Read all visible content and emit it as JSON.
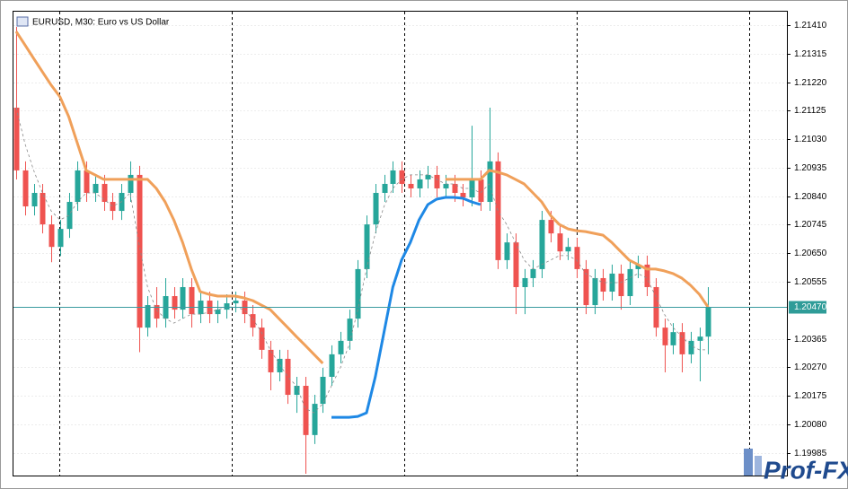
{
  "chart_data": {
    "type": "candlestick",
    "title": "EURUSD, M30:  Euro vs US Dollar",
    "bull_color": "#26a69a",
    "bear_color": "#ef5350",
    "open": [
      1.21135,
      1.20926,
      1.20806,
      1.20851,
      1.20746,
      1.20671,
      1.20731,
      1.20821,
      1.20926,
      1.20851,
      1.20881,
      1.20821,
      1.20791,
      1.20851,
      1.20911,
      1.20402,
      1.20477,
      1.20432,
      1.20507,
      1.20462,
      1.20537,
      1.20447,
      1.20492,
      1.20447,
      1.20462,
      1.20483,
      1.20492,
      1.20447,
      1.20402,
      1.20328,
      1.20253,
      1.20298,
      1.20178,
      1.20208,
      1.20044,
      1.20148,
      1.20238,
      1.20313,
      1.20358,
      1.20432,
      1.20597,
      1.20746,
      1.20851,
      1.20881,
      1.20926,
      1.20881,
      1.20866,
      1.20896,
      1.20911,
      1.20866,
      1.20881,
      1.20851,
      1.20836,
      1.20896,
      1.20821,
      1.20956,
      1.20627,
      1.20686,
      1.20537,
      1.20567,
      1.20597,
      1.20761,
      1.20716,
      1.20656,
      1.20671,
      1.20597,
      1.20477,
      1.20567,
      1.20522,
      1.20582,
      1.20507,
      1.20597,
      1.20612,
      1.20537,
      1.20402,
      1.20343,
      1.20387,
      1.20313,
      1.20358,
      1.20372
    ],
    "high": [
      1.21404,
      1.20956,
      1.20881,
      1.20881,
      1.20776,
      1.20761,
      1.20851,
      1.20956,
      1.20956,
      1.20911,
      1.20911,
      1.20851,
      1.20881,
      1.20956,
      1.20941,
      1.20507,
      1.20537,
      1.20567,
      1.20537,
      1.20567,
      1.20567,
      1.20522,
      1.20522,
      1.20492,
      1.20513,
      1.20522,
      1.20522,
      1.20477,
      1.20432,
      1.20358,
      1.20328,
      1.20328,
      1.20238,
      1.20238,
      1.20178,
      1.20268,
      1.20343,
      1.20388,
      1.20462,
      1.20627,
      1.20776,
      1.20881,
      1.20911,
      1.20956,
      1.20956,
      1.20911,
      1.20926,
      1.20941,
      1.20941,
      1.20911,
      1.20911,
      1.20881,
      1.21075,
      1.20926,
      1.21135,
      1.20986,
      1.20716,
      1.20716,
      1.20597,
      1.20627,
      1.20791,
      1.20791,
      1.20746,
      1.20701,
      1.20701,
      1.20627,
      1.20597,
      1.20597,
      1.20612,
      1.20612,
      1.20627,
      1.20642,
      1.20642,
      1.20567,
      1.20432,
      1.20417,
      1.20417,
      1.20388,
      1.20402,
      1.20537
    ],
    "low": [
      1.20896,
      1.20776,
      1.20776,
      1.20716,
      1.2062,
      1.20641,
      1.20701,
      1.20791,
      1.20821,
      1.20821,
      1.20791,
      1.20761,
      1.20761,
      1.20821,
      1.2032,
      1.20372,
      1.20402,
      1.20402,
      1.20432,
      1.20432,
      1.20402,
      1.20417,
      1.20417,
      1.20417,
      1.20432,
      1.20453,
      1.20417,
      1.20372,
      1.20298,
      1.20193,
      1.20223,
      1.20148,
      1.20118,
      1.19915,
      1.20014,
      1.20118,
      1.20208,
      1.20283,
      1.20328,
      1.20402,
      1.20567,
      1.20716,
      1.20821,
      1.20851,
      1.20851,
      1.20836,
      1.20836,
      1.20866,
      1.20836,
      1.20836,
      1.20821,
      1.20806,
      1.20806,
      1.20791,
      1.20791,
      1.20597,
      1.20597,
      1.20447,
      1.20447,
      1.20537,
      1.20567,
      1.20686,
      1.20627,
      1.20627,
      1.20567,
      1.20447,
      1.20447,
      1.20492,
      1.20492,
      1.20462,
      1.20477,
      1.20567,
      1.20507,
      1.20372,
      1.20253,
      1.20313,
      1.20253,
      1.20283,
      1.20223,
      1.20313
    ],
    "close": [
      1.20926,
      1.20806,
      1.20851,
      1.20746,
      1.20671,
      1.20731,
      1.20821,
      1.20926,
      1.20851,
      1.20881,
      1.20821,
      1.20791,
      1.20851,
      1.20911,
      1.20402,
      1.20477,
      1.20432,
      1.20507,
      1.20462,
      1.20537,
      1.20447,
      1.20492,
      1.20447,
      1.20462,
      1.20483,
      1.20492,
      1.20447,
      1.20402,
      1.20328,
      1.20253,
      1.20298,
      1.20178,
      1.20208,
      1.20044,
      1.20148,
      1.20238,
      1.20313,
      1.20358,
      1.20432,
      1.20597,
      1.20746,
      1.20851,
      1.20881,
      1.20926,
      1.20881,
      1.20866,
      1.20896,
      1.20911,
      1.20866,
      1.20881,
      1.20851,
      1.20836,
      1.20896,
      1.20821,
      1.20956,
      1.20627,
      1.20686,
      1.20537,
      1.20567,
      1.20597,
      1.20761,
      1.20716,
      1.20656,
      1.20671,
      1.20597,
      1.20477,
      1.20567,
      1.20522,
      1.20582,
      1.20507,
      1.20597,
      1.20612,
      1.20537,
      1.20402,
      1.20343,
      1.20387,
      1.20313,
      1.20358,
      1.20372,
      1.2047
    ],
    "lines": [
      {
        "color": "#f0a05a",
        "style": "solid",
        "values": [
          1.21389,
          1.21344,
          1.21299,
          1.21254,
          1.2121,
          1.21171,
          1.21105,
          1.21015,
          1.20926,
          1.20911,
          1.20896,
          1.20896,
          1.20896,
          1.20896,
          1.20896,
          1.20896,
          1.20866,
          1.20821,
          1.20761,
          1.20686,
          1.20597,
          1.20522,
          1.20513,
          1.20507,
          1.20507,
          1.20507,
          1.20501,
          1.20492,
          1.20477,
          1.20462,
          1.20432,
          1.20402,
          1.20372,
          1.20343,
          1.20313,
          1.20283,
          null,
          null,
          null,
          null,
          null,
          null,
          null,
          null,
          null,
          null,
          null,
          null,
          null,
          1.20896,
          1.20896,
          1.20896,
          1.20896,
          1.20896,
          1.20926,
          1.2092,
          1.20911,
          1.20896,
          1.20881,
          1.20851,
          1.20821,
          1.20776,
          1.20746,
          1.20731,
          1.20725,
          1.20722,
          1.20716,
          1.2071,
          1.20686,
          1.20656,
          1.20627,
          1.20612,
          1.20597,
          1.20597,
          1.20591,
          1.20582,
          1.20567,
          1.20543,
          1.20513,
          1.2047
        ]
      },
      {
        "color": "#1e88e5",
        "style": "solid",
        "values": [
          null,
          null,
          null,
          null,
          null,
          null,
          null,
          null,
          null,
          null,
          null,
          null,
          null,
          null,
          null,
          null,
          null,
          null,
          null,
          null,
          null,
          null,
          null,
          null,
          null,
          null,
          null,
          null,
          null,
          null,
          null,
          null,
          null,
          null,
          null,
          null,
          1.20103,
          1.20103,
          1.20103,
          1.20106,
          1.20118,
          1.20238,
          1.20387,
          1.20537,
          1.20627,
          1.20686,
          1.20761,
          1.20812,
          1.2083,
          1.20836,
          1.20836,
          1.20833,
          1.20821,
          1.20812,
          null,
          null,
          null,
          null,
          null,
          null,
          null,
          null,
          null,
          null,
          null,
          null,
          null,
          null,
          null,
          null,
          null,
          null,
          null,
          null,
          null,
          null,
          null,
          null,
          null,
          null
        ]
      },
      {
        "color": "#8a8a8a",
        "style": "dashed",
        "values": [
          1.21135,
          1.21015,
          1.20926,
          1.20851,
          1.20791,
          1.20761,
          1.20776,
          1.20821,
          1.20851,
          1.20851,
          1.2083,
          1.20806,
          1.20821,
          1.20851,
          1.20686,
          1.20537,
          1.20462,
          1.20432,
          1.20417,
          1.20432,
          1.20447,
          1.20447,
          1.20453,
          1.20462,
          1.2047,
          1.20471,
          1.20462,
          1.20432,
          1.20387,
          1.20328,
          1.20283,
          1.20238,
          1.20208,
          1.20133,
          1.20118,
          1.20148,
          1.20208,
          1.20268,
          1.20343,
          1.20462,
          1.20597,
          1.20716,
          1.20806,
          1.20866,
          1.20896,
          1.20911,
          1.20911,
          1.20911,
          1.20896,
          1.20881,
          1.20881,
          1.20866,
          1.20866,
          1.20851,
          1.20881,
          1.20791,
          1.20746,
          1.20686,
          1.20627,
          1.20597,
          1.20612,
          1.20627,
          1.20642,
          1.20642,
          1.20627,
          1.20582,
          1.20567,
          1.20552,
          1.20552,
          1.20552,
          1.20567,
          1.20582,
          1.20567,
          1.20507,
          1.20447,
          1.20402,
          1.20372,
          1.20343,
          1.20328,
          1.20328
        ]
      }
    ],
    "price_line": {
      "value": 1.2047,
      "label": "1.20470"
    },
    "ylim": [
      1.19909,
      1.21458
    ],
    "yticks": [
      {
        "value": 1.2141,
        "label": "1.21410"
      },
      1.21315,
      {
        "value": 1.2122,
        "label": "1.21220"
      },
      1.21125,
      {
        "value": 1.2103,
        "label": "1.21030"
      },
      1.20935,
      {
        "value": 1.2084,
        "label": "1.20840"
      },
      1.20745,
      {
        "value": 1.2065,
        "label": "1.20650"
      },
      1.20555,
      1.20365,
      {
        "value": 1.2027,
        "label": "1.20270"
      },
      1.20175,
      {
        "value": 1.2008,
        "label": "1.20080"
      },
      1.19985
    ],
    "grid": true
  },
  "watermark": "Prof-FX"
}
